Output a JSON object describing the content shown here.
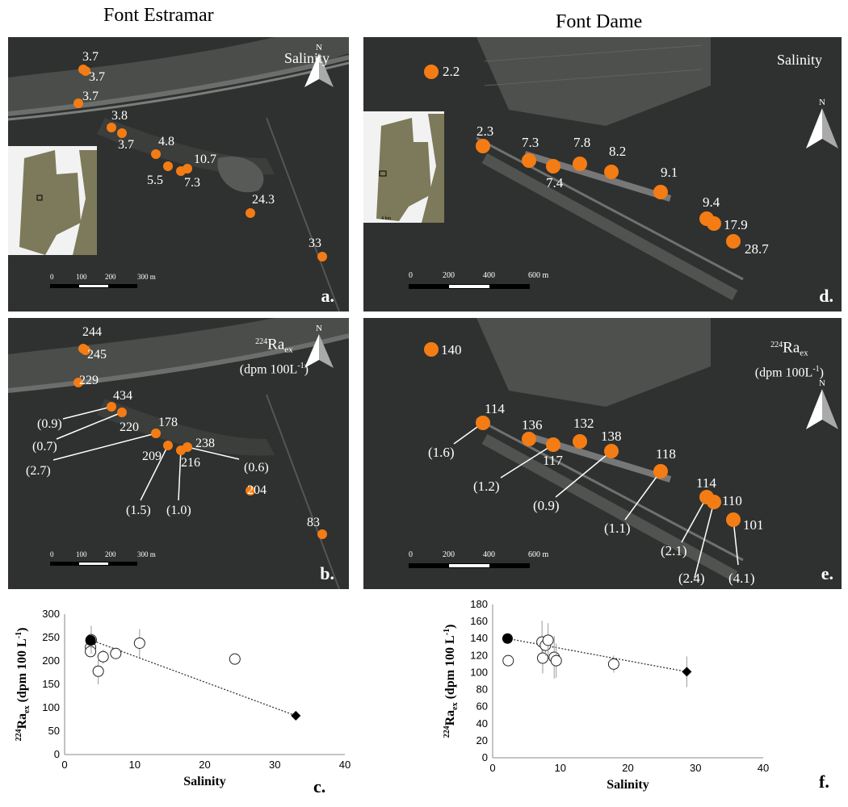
{
  "columns": {
    "left": "Font Estramar",
    "right": "Font Dame"
  },
  "panels": {
    "a": {
      "letter": "a.",
      "title": "Salinity",
      "north": "N",
      "scale_ticks": [
        "0",
        "100",
        "200",
        "300 m"
      ]
    },
    "b": {
      "letter": "b.",
      "title_super": "224",
      "title_main": "Ra",
      "title_sub": "ex",
      "title_line2": "(dpm 100L",
      "title_line2_super": "-1",
      "title_line2_end": ")",
      "north": "N",
      "scale_ticks": [
        "0",
        "100",
        "200",
        "300 m"
      ]
    },
    "d": {
      "letter": "d.",
      "title": "Salinity",
      "north": "N",
      "inset_scale": "4 km",
      "scale_ticks": [
        "0",
        "200",
        "400",
        "600 m"
      ]
    },
    "e": {
      "letter": "e.",
      "title_super": "224",
      "title_main": "Ra",
      "title_sub": "ex",
      "title_line2": "(dpm 100L",
      "title_line2_super": "-1",
      "title_line2_end": ")",
      "north": "N",
      "scale_ticks": [
        "0",
        "200",
        "400",
        "600 m"
      ]
    }
  },
  "estramar_salinity_labels": [
    "3.7",
    "3.7",
    "3.7",
    "3.8",
    "3.7",
    "4.8",
    "5.5",
    "10.7",
    "7.3",
    "24.3",
    "33"
  ],
  "estramar_ra_labels": [
    "244",
    "245",
    "229",
    "434",
    "220",
    "178",
    "209",
    "216",
    "238",
    "204",
    "83"
  ],
  "estramar_ra_errors": [
    "(0.9)",
    "(0.7)",
    "(2.7)",
    "(1.5)",
    "(1.0)",
    "(0.6)"
  ],
  "dame_salinity_labels": [
    "2.2",
    "2.3",
    "7.3",
    "7.4",
    "7.8",
    "8.2",
    "9.1",
    "9.4",
    "17.9",
    "28.7"
  ],
  "dame_ra_labels": [
    "140",
    "114",
    "136",
    "117",
    "132",
    "138",
    "118",
    "114",
    "110",
    "101"
  ],
  "dame_ra_errors": [
    "(1.6)",
    "(1.2)",
    "(0.9)",
    "(1.1)",
    "(2.1)",
    "(2.4)",
    "(4.1)"
  ],
  "colors": {
    "marker": "#f47c14",
    "map_bg": "#2e312f",
    "inset_land": "#7c7a5a"
  },
  "chart_data": [
    {
      "type": "scatter",
      "letter": "c.",
      "xlabel": "Salinity",
      "ylabel_super": "224",
      "ylabel_main": "Ra",
      "ylabel_sub": "ex",
      "ylabel_end": " (dpm 100 L",
      "ylabel_end_super": "-1",
      "ylabel_close": ")",
      "xlim": [
        0,
        40
      ],
      "ylim": [
        0,
        300
      ],
      "xticks": [
        "0",
        "10",
        "20",
        "30",
        "40"
      ],
      "yticks": [
        "0",
        "50",
        "100",
        "150",
        "200",
        "250",
        "300"
      ],
      "series": [
        {
          "marker": "open-circle",
          "points": [
            [
              3.7,
              229,
              12
            ],
            [
              3.7,
              220,
              10
            ],
            [
              3.8,
              245,
              30
            ],
            [
              5.5,
              209,
              15
            ],
            [
              4.8,
              178,
              28
            ],
            [
              7.3,
              216,
              12
            ],
            [
              10.7,
              238,
              30
            ],
            [
              24.3,
              204,
              10
            ]
          ]
        },
        {
          "marker": "filled-circle",
          "points": [
            [
              3.7,
              244,
              15
            ]
          ]
        },
        {
          "marker": "filled-diamond",
          "points": [
            [
              33,
              83,
              5
            ]
          ]
        }
      ],
      "trendline": [
        [
          3.7,
          245
        ],
        [
          33,
          83
        ]
      ]
    },
    {
      "type": "scatter",
      "letter": "f.",
      "xlabel": "Salinity",
      "ylabel_super": "224",
      "ylabel_main": "Ra",
      "ylabel_sub": "ex",
      "ylabel_end": " (dpm 100 L",
      "ylabel_end_super": "-1",
      "ylabel_close": ")",
      "xlim": [
        0,
        40
      ],
      "ylim": [
        0,
        180
      ],
      "xticks": [
        "0",
        "10",
        "20",
        "30",
        "40"
      ],
      "yticks": [
        "0",
        "20",
        "40",
        "60",
        "80",
        "100",
        "120",
        "140",
        "160",
        "180"
      ],
      "series": [
        {
          "marker": "open-circle",
          "points": [
            [
              2.3,
              114,
              5
            ],
            [
              7.3,
              136,
              25
            ],
            [
              7.4,
              117,
              18
            ],
            [
              7.8,
              132,
              12
            ],
            [
              8.2,
              138,
              20
            ],
            [
              9.1,
              118,
              25
            ],
            [
              9.4,
              114,
              20
            ],
            [
              17.9,
              110,
              10
            ]
          ]
        },
        {
          "marker": "filled-circle",
          "points": [
            [
              2.2,
              140,
              5
            ]
          ]
        },
        {
          "marker": "filled-diamond",
          "points": [
            [
              28.7,
              101,
              18
            ]
          ]
        }
      ],
      "trendline": [
        [
          2.2,
          140
        ],
        [
          28.7,
          101
        ]
      ]
    }
  ]
}
